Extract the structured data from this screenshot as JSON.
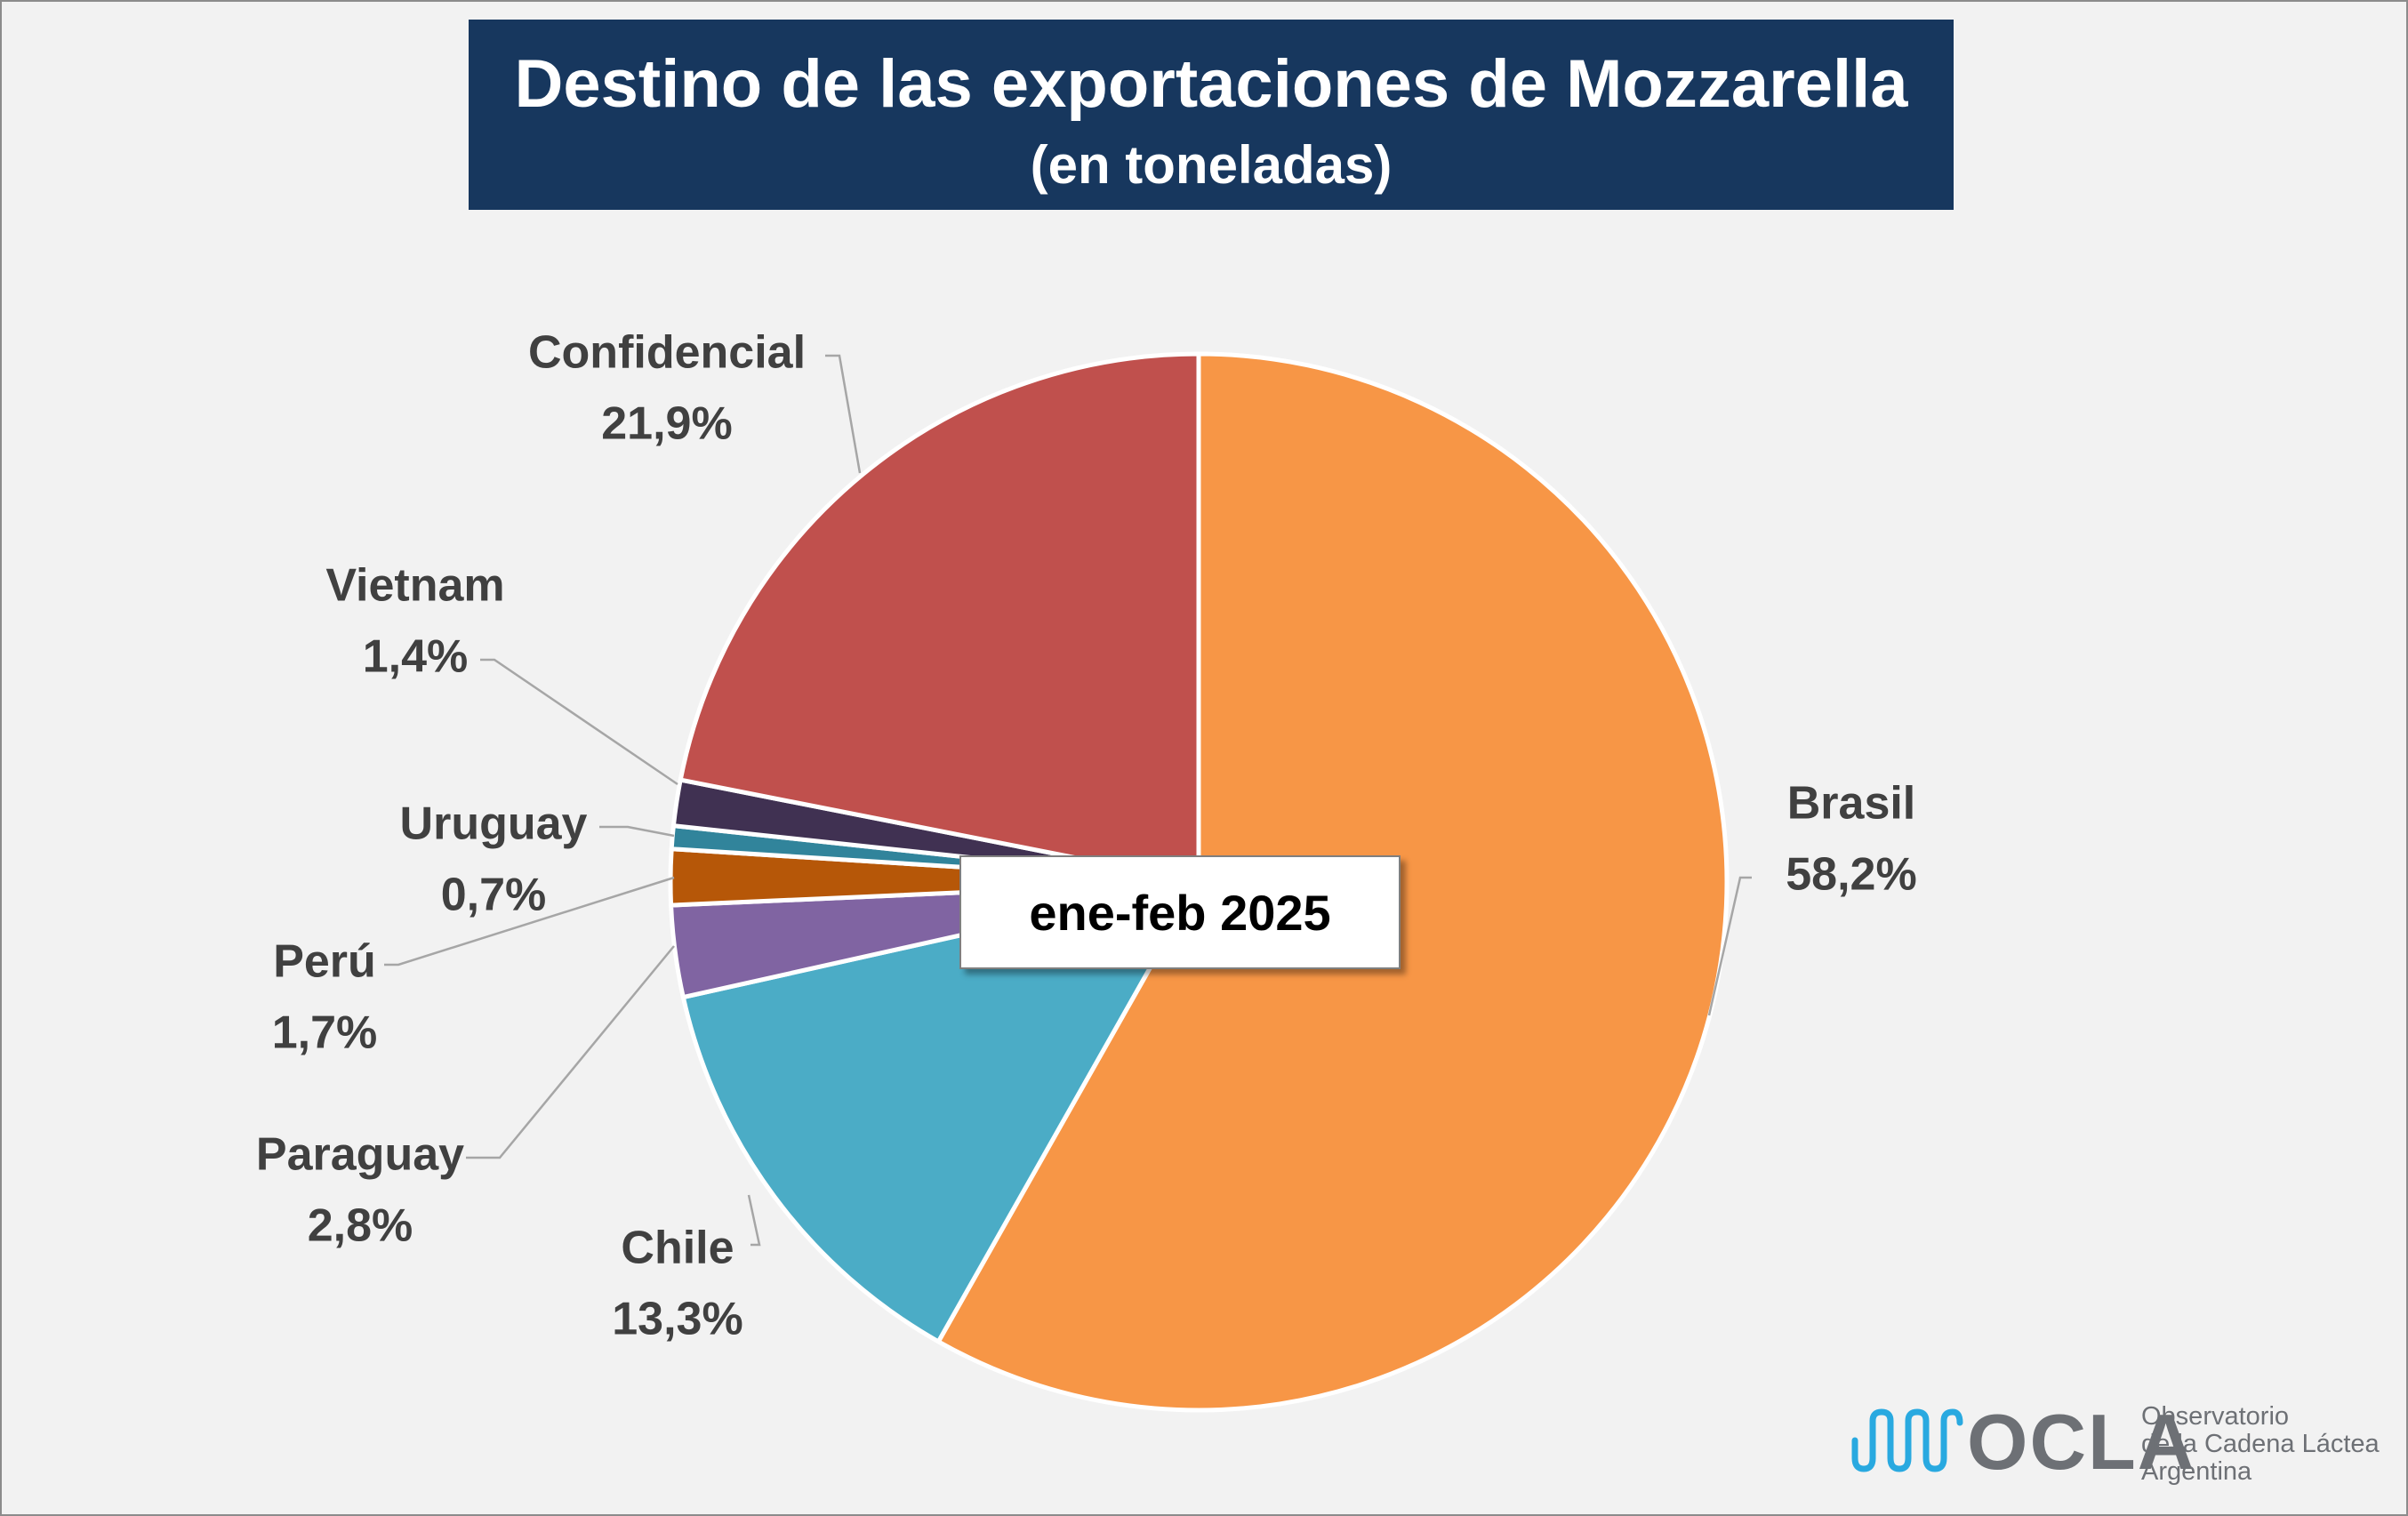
{
  "title": "Destino de las exportaciones de Mozzarella",
  "subtitle": "(en toneladas)",
  "period_label": "ene-feb 2025",
  "logo": {
    "name": "OCLA",
    "line1": "Observatorio",
    "line2": "de la Cadena Láctea",
    "line3": "Argentina"
  },
  "chart_data": {
    "type": "pie",
    "title": "Destino de las exportaciones de Mozzarella",
    "subtitle": "(en toneladas)",
    "unit": "%",
    "slices": [
      {
        "name": "Brasil",
        "value": 58.2,
        "label": "58,2%",
        "color": "#f79646"
      },
      {
        "name": "Chile",
        "value": 13.3,
        "label": "13,3%",
        "color": "#4bacc6"
      },
      {
        "name": "Paraguay",
        "value": 2.8,
        "label": "2,8%",
        "color": "#8064a2"
      },
      {
        "name": "Perú",
        "value": 1.7,
        "label": "1,7%",
        "color": "#b65708"
      },
      {
        "name": "Uruguay",
        "value": 0.7,
        "label": "0,7%",
        "color": "#31849b"
      },
      {
        "name": "Vietnam",
        "value": 1.4,
        "label": "1,4%",
        "color": "#403152"
      },
      {
        "name": "Confidencial",
        "value": 21.9,
        "label": "21,9%",
        "color": "#c0504d"
      }
    ]
  }
}
